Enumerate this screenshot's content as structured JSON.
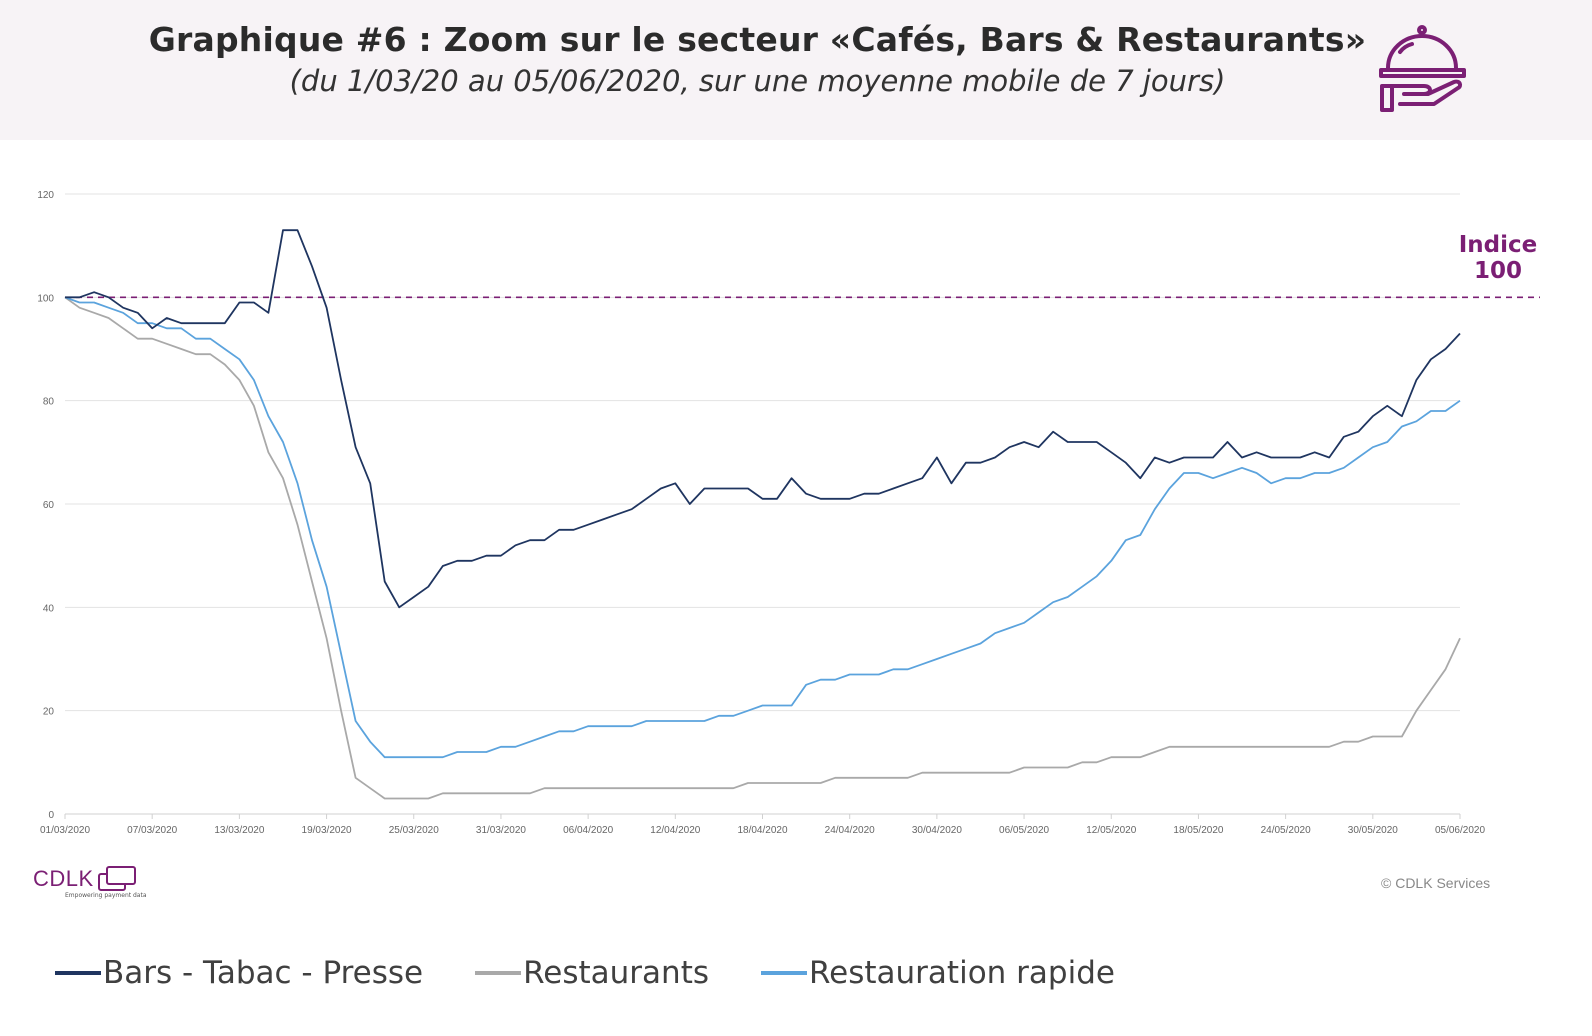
{
  "header": {
    "title": "Graphique #6 : Zoom sur le secteur «Cafés, Bars & Restaurants»",
    "subtitle": "(du 1/03/20 au 05/06/2020, sur une moyenne mobile de 7 jours)",
    "icon": "serving-cloche-icon"
  },
  "colors": {
    "accent": "#7b1f74",
    "bars": "#1f3560",
    "restaurants": "#a9a9a9",
    "rapide": "#5ba3dd",
    "grid": "#e3e3e3"
  },
  "annotation": {
    "line1": "Indice",
    "line2": "100",
    "value": 100
  },
  "footer": {
    "logo": "CDLK",
    "logo_tagline": "Empowering payment data",
    "copyright": "© CDLK Services"
  },
  "chart_data": {
    "type": "line",
    "title": "Graphique #6 : Zoom sur le secteur «Cafés, Bars & Restaurants»",
    "xlabel": "",
    "ylabel": "",
    "ylim": [
      0,
      120
    ],
    "yticks": [
      0,
      20,
      40,
      60,
      80,
      100,
      120
    ],
    "xlim_days": [
      0,
      96
    ],
    "xticks": [
      {
        "day": 0,
        "label": "01/03/2020"
      },
      {
        "day": 6,
        "label": "07/03/2020"
      },
      {
        "day": 12,
        "label": "13/03/2020"
      },
      {
        "day": 18,
        "label": "19/03/2020"
      },
      {
        "day": 24,
        "label": "25/03/2020"
      },
      {
        "day": 30,
        "label": "31/03/2020"
      },
      {
        "day": 36,
        "label": "06/04/2020"
      },
      {
        "day": 42,
        "label": "12/04/2020"
      },
      {
        "day": 48,
        "label": "18/04/2020"
      },
      {
        "day": 54,
        "label": "24/04/2020"
      },
      {
        "day": 60,
        "label": "30/04/2020"
      },
      {
        "day": 66,
        "label": "06/05/2020"
      },
      {
        "day": 72,
        "label": "12/05/2020"
      },
      {
        "day": 78,
        "label": "18/05/2020"
      },
      {
        "day": 84,
        "label": "24/05/2020"
      },
      {
        "day": 90,
        "label": "30/05/2020"
      },
      {
        "day": 96,
        "label": "05/06/2020"
      }
    ],
    "grid": true,
    "legend_position": "bottom",
    "reference_line": 100,
    "series": [
      {
        "name": "Bars - Tabac - Presse",
        "color": "#1f3560",
        "values": [
          100,
          100,
          101,
          100,
          98,
          97,
          94,
          96,
          95,
          95,
          95,
          95,
          99,
          99,
          97,
          113,
          113,
          106,
          98,
          84,
          71,
          64,
          45,
          40,
          42,
          44,
          48,
          49,
          49,
          50,
          50,
          52,
          53,
          53,
          55,
          55,
          56,
          57,
          58,
          59,
          61,
          63,
          64,
          60,
          63,
          63,
          63,
          63,
          61,
          61,
          65,
          62,
          61,
          61,
          61,
          62,
          62,
          63,
          64,
          65,
          69,
          64,
          68,
          68,
          69,
          71,
          72,
          71,
          74,
          72,
          72,
          72,
          70,
          68,
          65,
          69,
          68,
          69,
          69,
          69,
          72,
          69,
          70,
          69,
          69,
          69,
          70,
          69,
          73,
          74,
          77,
          79,
          77,
          84,
          88,
          90,
          93
        ]
      },
      {
        "name": "Restaurants",
        "color": "#a9a9a9",
        "values": [
          100,
          98,
          97,
          96,
          94,
          92,
          92,
          91,
          90,
          89,
          89,
          87,
          84,
          79,
          70,
          65,
          56,
          45,
          34,
          20,
          7,
          5,
          3,
          3,
          3,
          3,
          4,
          4,
          4,
          4,
          4,
          4,
          4,
          5,
          5,
          5,
          5,
          5,
          5,
          5,
          5,
          5,
          5,
          5,
          5,
          5,
          5,
          6,
          6,
          6,
          6,
          6,
          6,
          7,
          7,
          7,
          7,
          7,
          7,
          8,
          8,
          8,
          8,
          8,
          8,
          8,
          9,
          9,
          9,
          9,
          10,
          10,
          11,
          11,
          11,
          12,
          13,
          13,
          13,
          13,
          13,
          13,
          13,
          13,
          13,
          13,
          13,
          13,
          14,
          14,
          15,
          15,
          15,
          20,
          24,
          28,
          34
        ]
      },
      {
        "name": "Restauration rapide",
        "color": "#5ba3dd",
        "values": [
          100,
          99,
          99,
          98,
          97,
          95,
          95,
          94,
          94,
          92,
          92,
          90,
          88,
          84,
          77,
          72,
          64,
          53,
          44,
          31,
          18,
          14,
          11,
          11,
          11,
          11,
          11,
          12,
          12,
          12,
          13,
          13,
          14,
          15,
          16,
          16,
          17,
          17,
          17,
          17,
          18,
          18,
          18,
          18,
          18,
          19,
          19,
          20,
          21,
          21,
          21,
          25,
          26,
          26,
          27,
          27,
          27,
          28,
          28,
          29,
          30,
          31,
          32,
          33,
          35,
          36,
          37,
          39,
          41,
          42,
          44,
          46,
          49,
          53,
          54,
          59,
          63,
          66,
          66,
          65,
          66,
          67,
          66,
          64,
          65,
          65,
          66,
          66,
          67,
          69,
          71,
          72,
          75,
          76,
          78,
          78,
          80
        ]
      }
    ]
  }
}
